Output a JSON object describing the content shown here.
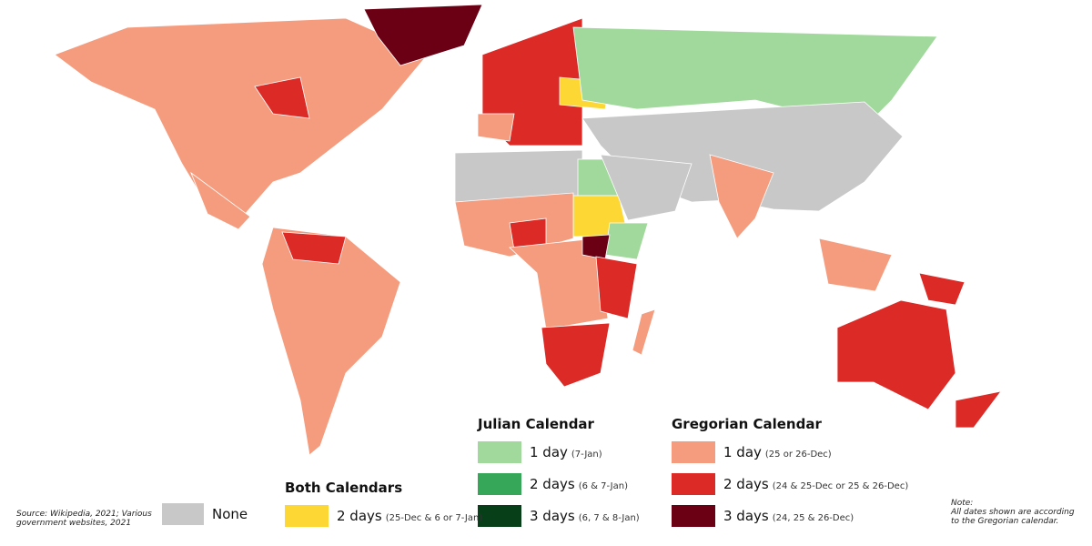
{
  "legend": {
    "julian": {
      "title": "Julian Calendar",
      "items": [
        {
          "label": "1 day",
          "detail": "(7-Jan)",
          "color": "#a0d99b"
        },
        {
          "label": "2 days",
          "detail": "(6 & 7-Jan)",
          "color": "#36a658"
        },
        {
          "label": "3 days",
          "detail": "(6, 7 & 8-Jan)",
          "color": "#073f18"
        }
      ]
    },
    "gregorian": {
      "title": "Gregorian Calendar",
      "items": [
        {
          "label": "1 day",
          "detail": "(25 or 26-Dec)",
          "color": "#f59c7e"
        },
        {
          "label": "2 days",
          "detail": "(24 & 25-Dec or 25 & 26-Dec)",
          "color": "#dc2a26"
        },
        {
          "label": "3 days",
          "detail": "(24, 25 & 26-Dec)",
          "color": "#6b0014"
        }
      ]
    },
    "both": {
      "title": "Both Calendars",
      "items": [
        {
          "label": "2 days",
          "detail": "(25-Dec & 6 or 7-Jan)",
          "color": "#fdd835"
        }
      ]
    },
    "none": {
      "label": "None",
      "color": "#c8c8c8"
    }
  },
  "source": "Source: Wikipedia, 2021; Various government websites, 2021",
  "note": {
    "title": "Note:",
    "text": "All dates shown are according to the Gregorian calendar."
  }
}
